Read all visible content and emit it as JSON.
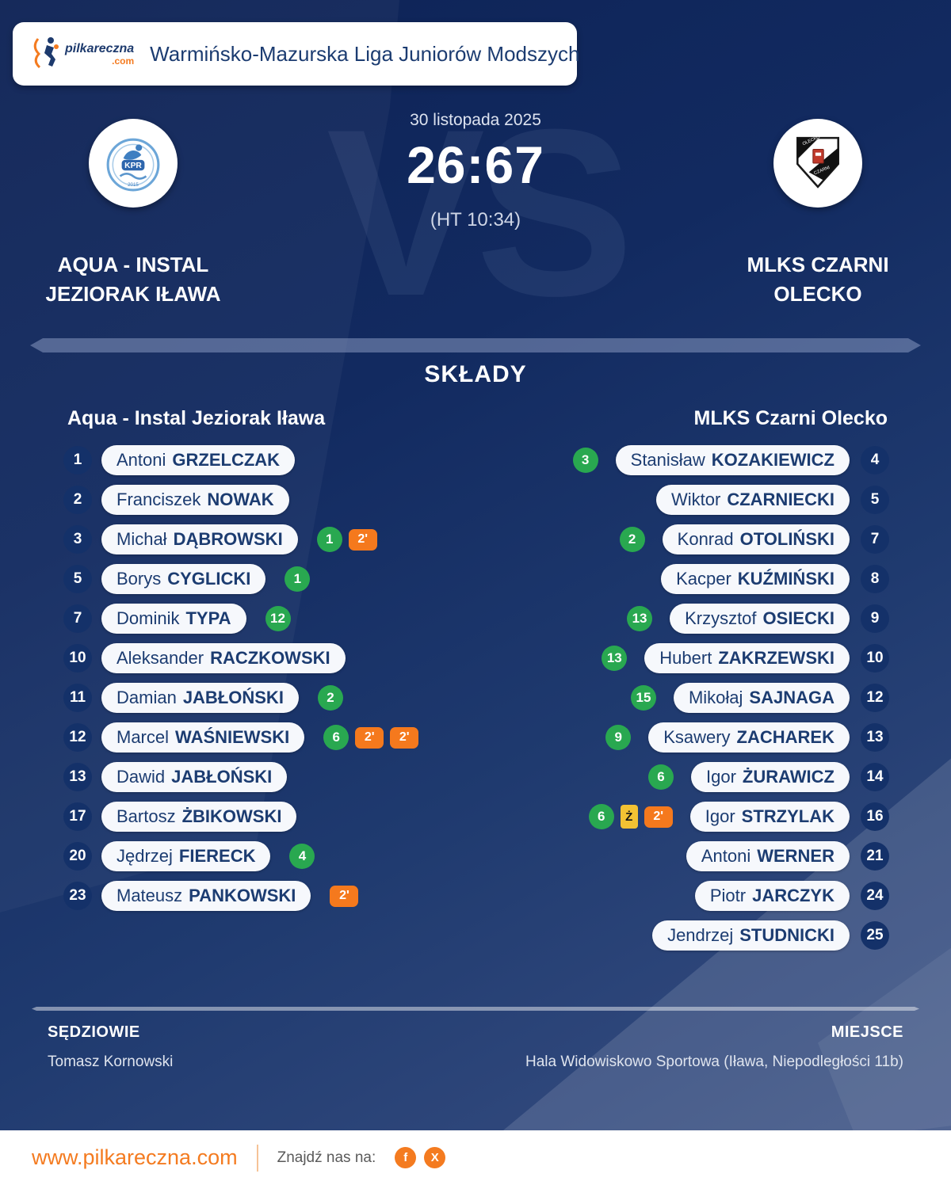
{
  "header": {
    "brand_name": "pilkareczna",
    "brand_suffix": ".com",
    "title": "Warmińsko-Mazurska Liga Juniorów Modszych"
  },
  "match": {
    "date": "30 listopada 2025",
    "score": "26:67",
    "halftime": "(HT 10:34)",
    "vs_watermark": "VS",
    "home": {
      "name_lines": [
        "AQUA - INSTAL",
        "JEZIORAK IŁAWA"
      ],
      "crest_text": "KPR"
    },
    "away": {
      "name_lines": [
        "MLKS CZARNI",
        "OLECKO"
      ],
      "crest_text_top": "OLECKO",
      "crest_text_bottom": "CZARNI"
    }
  },
  "lineups": {
    "title": "SKŁADY",
    "home": {
      "header": "Aqua - Instal Jeziorak Iława",
      "players": [
        {
          "number": "1",
          "first": "Antoni",
          "last": "GRZELCZAK",
          "badges": []
        },
        {
          "number": "2",
          "first": "Franciszek",
          "last": "NOWAK",
          "badges": []
        },
        {
          "number": "3",
          "first": "Michał",
          "last": "DĄBROWSKI",
          "badges": [
            {
              "type": "goals",
              "label": "1"
            },
            {
              "type": "susp",
              "label": "2'"
            }
          ]
        },
        {
          "number": "5",
          "first": "Borys",
          "last": "CYGLICKI",
          "badges": [
            {
              "type": "goals",
              "label": "1"
            }
          ]
        },
        {
          "number": "7",
          "first": "Dominik",
          "last": "TYPA",
          "badges": [
            {
              "type": "goals",
              "label": "12"
            }
          ]
        },
        {
          "number": "10",
          "first": "Aleksander",
          "last": "RACZKOWSKI",
          "badges": []
        },
        {
          "number": "11",
          "first": "Damian",
          "last": "JABŁOŃSKI",
          "badges": [
            {
              "type": "goals",
              "label": "2"
            }
          ]
        },
        {
          "number": "12",
          "first": "Marcel",
          "last": "WAŚNIEWSKI",
          "badges": [
            {
              "type": "goals",
              "label": "6"
            },
            {
              "type": "susp",
              "label": "2'"
            },
            {
              "type": "susp",
              "label": "2'"
            }
          ]
        },
        {
          "number": "13",
          "first": "Dawid",
          "last": "JABŁOŃSKI",
          "badges": []
        },
        {
          "number": "17",
          "first": "Bartosz",
          "last": "ŻBIKOWSKI",
          "badges": []
        },
        {
          "number": "20",
          "first": "Jędrzej",
          "last": "FIERECK",
          "badges": [
            {
              "type": "goals",
              "label": "4"
            }
          ]
        },
        {
          "number": "23",
          "first": "Mateusz",
          "last": "PANKOWSKI",
          "badges": [
            {
              "type": "susp",
              "label": "2'"
            }
          ]
        }
      ]
    },
    "away": {
      "header": "MLKS Czarni Olecko",
      "players": [
        {
          "number": "4",
          "first": "Stanisław",
          "last": "KOZAKIEWICZ",
          "badges": [
            {
              "type": "goals",
              "label": "3"
            }
          ]
        },
        {
          "number": "5",
          "first": "Wiktor",
          "last": "CZARNIECKI",
          "badges": []
        },
        {
          "number": "7",
          "first": "Konrad",
          "last": "OTOLIŃSKI",
          "badges": [
            {
              "type": "goals",
              "label": "2"
            }
          ]
        },
        {
          "number": "8",
          "first": "Kacper",
          "last": "KUŹMIŃSKI",
          "badges": []
        },
        {
          "number": "9",
          "first": "Krzysztof",
          "last": "OSIECKI",
          "badges": [
            {
              "type": "goals",
              "label": "13"
            }
          ]
        },
        {
          "number": "10",
          "first": "Hubert",
          "last": "ZAKRZEWSKI",
          "badges": [
            {
              "type": "goals",
              "label": "13"
            }
          ]
        },
        {
          "number": "12",
          "first": "Mikołaj",
          "last": "SAJNAGA",
          "badges": [
            {
              "type": "goals",
              "label": "15"
            }
          ]
        },
        {
          "number": "13",
          "first": "Ksawery",
          "last": "ZACHAREK",
          "badges": [
            {
              "type": "goals",
              "label": "9"
            }
          ]
        },
        {
          "number": "14",
          "first": "Igor",
          "last": "ŻURAWICZ",
          "badges": [
            {
              "type": "goals",
              "label": "6"
            }
          ]
        },
        {
          "number": "16",
          "first": "Igor",
          "last": "STRZYLAK",
          "badges": [
            {
              "type": "goals",
              "label": "6"
            },
            {
              "type": "yellow",
              "label": "Ż"
            },
            {
              "type": "susp",
              "label": "2'"
            }
          ]
        },
        {
          "number": "21",
          "first": "Antoni",
          "last": "WERNER",
          "badges": []
        },
        {
          "number": "24",
          "first": "Piotr",
          "last": "JARCZYK",
          "badges": []
        },
        {
          "number": "25",
          "first": "Jendrzej",
          "last": "STUDNICKI",
          "badges": []
        }
      ]
    }
  },
  "officials": {
    "referees_label": "SĘDZIOWIE",
    "referees": "Tomasz Kornowski",
    "venue_label": "MIEJSCE",
    "venue": "Hala Widowiskowo Sportowa (Iława, Niepodległości 11b)"
  },
  "footer": {
    "website": "www.pilkareczna.com",
    "find_us": "Znajdź nas na:",
    "socials": [
      "f",
      "X"
    ]
  },
  "colors": {
    "accent_orange": "#f47b20",
    "goal_green": "#29a850",
    "suspension_orange": "#f5791d",
    "yellow_card": "#f3c233",
    "navy_background": "#0d2255",
    "pill_text_navy": "#1c3c71"
  }
}
